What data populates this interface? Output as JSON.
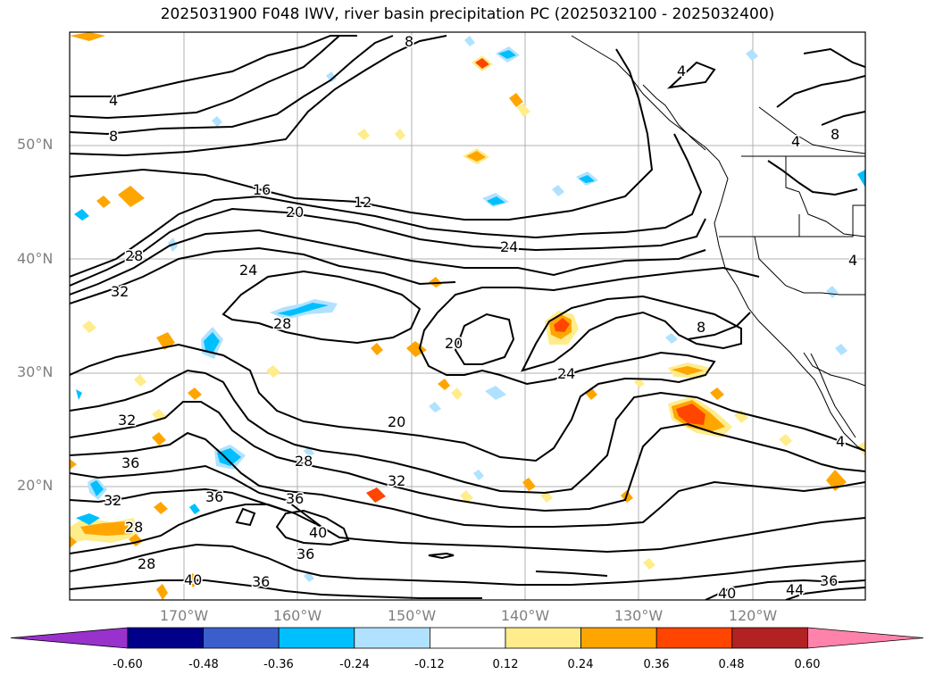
{
  "title": "2025031900 F048 IWV, river basin precipitation PC (2025032100 - 2025032400)",
  "lat_labels": [
    "50°N",
    "40°N",
    "30°N",
    "20°N"
  ],
  "lon_labels": [
    "170°W",
    "160°W",
    "150°W",
    "140°W",
    "130°W",
    "120°W"
  ],
  "contour_labels": [
    "4",
    "8",
    "16",
    "12",
    "20",
    "24",
    "28",
    "32",
    "24",
    "28",
    "20",
    "24",
    "20",
    "32",
    "36",
    "32",
    "28",
    "28",
    "36",
    "36",
    "40",
    "36",
    "28",
    "40",
    "36",
    "32",
    "8",
    "4",
    "4",
    "8",
    "4",
    "40",
    "44",
    "36",
    "4",
    "8"
  ],
  "colorbar": {
    "ticks": [
      "-0.60",
      "-0.48",
      "-0.36",
      "-0.24",
      "-0.12",
      "0.12",
      "0.24",
      "0.36",
      "0.48",
      "0.60"
    ],
    "colors": [
      "#9932cc",
      "#00008b",
      "#3a5fcd",
      "#00bfff",
      "#b0e2ff",
      "#ffffff",
      "#ffec8b",
      "#ffa500",
      "#ff4500",
      "#b22222",
      "#ff82ab"
    ]
  }
}
